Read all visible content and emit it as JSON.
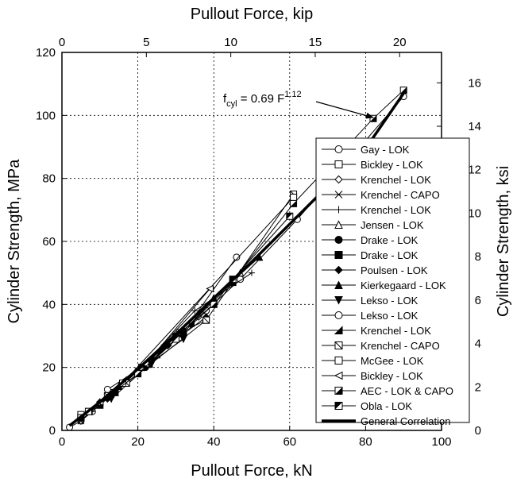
{
  "chart_data": {
    "type": "line",
    "xlabel_bottom": "Pullout Force, kN",
    "xlabel_top": "Pullout Force, kip",
    "ylabel_left": "Cylinder Strength, MPa",
    "ylabel_right": "Cylinder Strength, ksi",
    "xlim": [
      0,
      100
    ],
    "ylim": [
      0,
      120
    ],
    "xlim_top_kip": [
      0,
      22.48
    ],
    "ylim_right_ksi": [
      0,
      17.4
    ],
    "x_ticks": [
      0,
      20,
      40,
      60,
      80,
      100
    ],
    "y_ticks": [
      0,
      20,
      40,
      60,
      80,
      100,
      120
    ],
    "x_ticks_top_kip": [
      0,
      5,
      10,
      15,
      20
    ],
    "y_ticks_right_ksi": [
      0,
      2,
      4,
      6,
      8,
      10,
      12,
      14,
      16
    ],
    "grid": true,
    "legend_position": "right",
    "annotation": {
      "base": "f",
      "subscript": "cyl",
      "middle": " = 0.69 F",
      "superscript": "1.12",
      "arrow_to": [
        82,
        99
      ]
    },
    "series": [
      {
        "name": "Gay - LOK",
        "marker": "circle-open",
        "x": [
          2,
          5,
          8,
          13,
          21,
          31,
          38,
          47,
          62,
          90
        ],
        "y": [
          1,
          3,
          6,
          12,
          20,
          31,
          38,
          48,
          67,
          106
        ]
      },
      {
        "name": "Bickley - LOK",
        "marker": "square-open",
        "x": [
          5,
          7,
          12,
          21,
          31,
          38
        ],
        "y": [
          5,
          6,
          11,
          20,
          31,
          35
        ]
      },
      {
        "name": "Krenchel - LOK",
        "marker": "diamond-open",
        "x": [
          5,
          10,
          17,
          27,
          36
        ],
        "y": [
          3,
          9,
          16,
          27,
          36
        ]
      },
      {
        "name": "Krenchel - CAPO",
        "marker": "x",
        "x": [
          5,
          12,
          20,
          30,
          40
        ],
        "y": [
          3,
          11,
          19,
          30,
          40
        ]
      },
      {
        "name": "Krenchel - LOK",
        "marker": "plus",
        "x": [
          8,
          20,
          35,
          50
        ],
        "y": [
          6,
          19,
          38,
          50
        ]
      },
      {
        "name": "Jensen - LOK",
        "marker": "triangle-open",
        "x": [
          10,
          25,
          40,
          47
        ],
        "y": [
          9,
          24,
          42,
          50
        ]
      },
      {
        "name": "Drake - LOK",
        "marker": "circle-filled",
        "x": [
          13,
          22,
          30
        ],
        "y": [
          11,
          20,
          30
        ]
      },
      {
        "name": "Drake - LOK",
        "marker": "square-filled",
        "x": [
          14,
          23,
          32
        ],
        "y": [
          12,
          21,
          31
        ]
      },
      {
        "name": "Poulsen - LOK",
        "marker": "diamond-filled",
        "x": [
          12,
          20,
          28,
          38
        ],
        "y": [
          10,
          18,
          27,
          36
        ]
      },
      {
        "name": "Kierkegaard - LOK",
        "marker": "triangle-up-filled",
        "x": [
          15,
          27,
          40,
          52
        ],
        "y": [
          14,
          27,
          42,
          55
        ]
      },
      {
        "name": "Lekso - LOK",
        "marker": "triangle-down-filled",
        "x": [
          13,
          24,
          32
        ],
        "y": [
          10,
          22,
          29
        ]
      },
      {
        "name": "Lekso - LOK",
        "marker": "circle-open",
        "x": [
          12,
          21,
          33,
          46
        ],
        "y": [
          13,
          20,
          33,
          55
        ]
      },
      {
        "name": "Krenchel - LOK",
        "marker": "half-triangle",
        "x": [
          10,
          22,
          34,
          45
        ],
        "y": [
          8,
          21,
          34,
          47
        ]
      },
      {
        "name": "Krenchel - CAPO",
        "marker": "square-cross",
        "x": [
          5,
          17,
          38,
          61
        ],
        "y": [
          4,
          15,
          35,
          75
        ]
      },
      {
        "name": "McGee - LOK",
        "marker": "square-open",
        "x": [
          7,
          16,
          61
        ],
        "y": [
          6,
          15,
          74
        ]
      },
      {
        "name": "Bickley - LOK",
        "marker": "triangle-left-open",
        "x": [
          10,
          22,
          39
        ],
        "y": [
          9,
          21,
          45
        ]
      },
      {
        "name": "AEC - LOK & CAPO",
        "marker": "square-half",
        "x": [
          5,
          20,
          40,
          61,
          82,
          90
        ],
        "y": [
          4,
          18,
          40,
          72,
          99,
          108
        ]
      },
      {
        "name": "Obla - LOK",
        "marker": "square-half-alt",
        "x": [
          30,
          45,
          60
        ],
        "y": [
          29,
          48,
          68
        ]
      },
      {
        "name": "General Correlation",
        "marker": "line-thick",
        "x": [
          2,
          10,
          20,
          30,
          40,
          50,
          60,
          70,
          80,
          90
        ],
        "y": [
          1.5,
          9.0,
          19.5,
          30.5,
          42.0,
          53.5,
          65.5,
          77.5,
          89.5,
          107.0
        ]
      }
    ]
  }
}
